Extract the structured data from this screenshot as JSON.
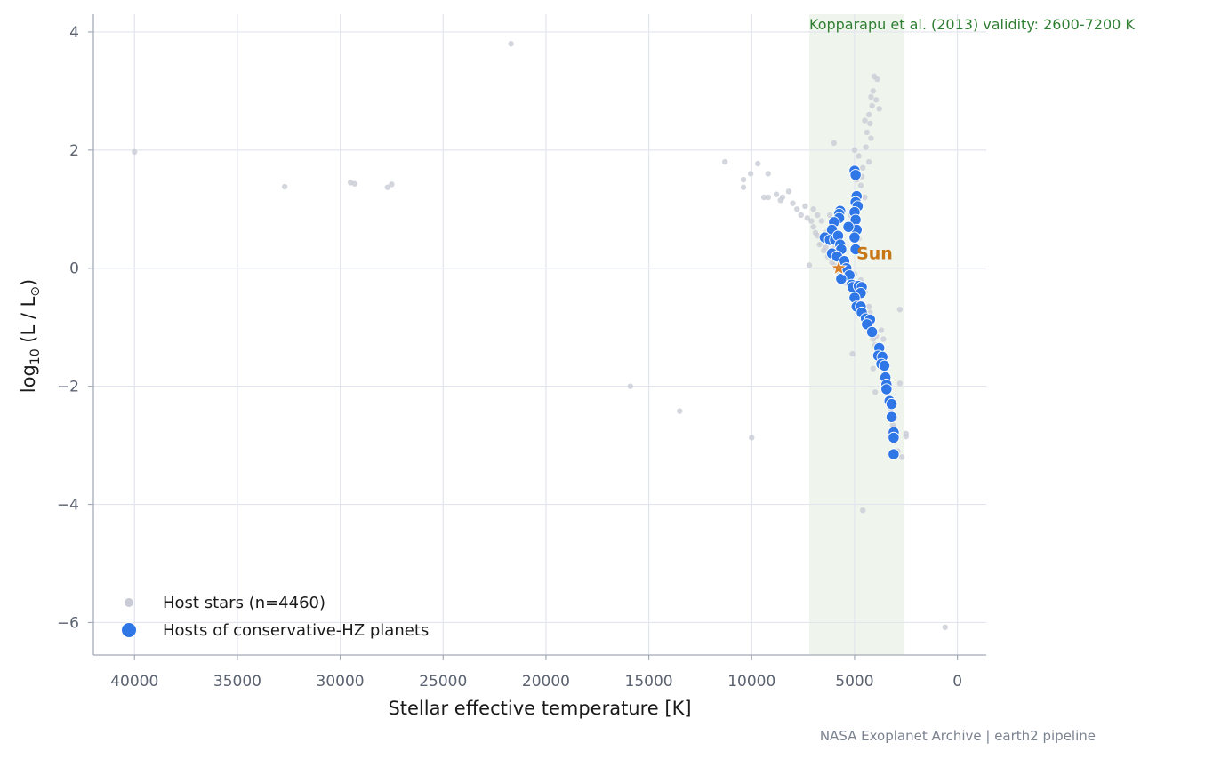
{
  "chart_data": {
    "type": "scatter",
    "title": "",
    "xlabel": "Stellar effective temperature  [K]",
    "ylabel_main": "log",
    "ylabel_sub": "10",
    "ylabel_rest": " (L / L",
    "ylabel_sun_sub": "⊙",
    "ylabel_close": ")",
    "x_inverted": true,
    "xlim": [
      42000,
      -1400
    ],
    "ylim": [
      -6.55,
      4.3
    ],
    "xticks": [
      40000,
      35000,
      30000,
      25000,
      20000,
      15000,
      10000,
      5000,
      0
    ],
    "xtick_labels": [
      "40000",
      "35000",
      "30000",
      "25000",
      "20000",
      "15000",
      "10000",
      "5000",
      "0"
    ],
    "yticks": [
      4,
      2,
      0,
      -2,
      -4,
      -6
    ],
    "ytick_labels": [
      "4",
      "2",
      "0",
      "−2",
      "−4",
      "−6"
    ],
    "grid": true,
    "legend_position": "lower-left",
    "band": {
      "x_from": 7200,
      "x_to": 2600,
      "label": "Kopparapu et al. (2013) validity: 2600-7200 K",
      "color": "#e4eee0"
    },
    "sun": {
      "label": "Sun",
      "teff": 5772,
      "log_l": 0.0,
      "color": "#d9812a"
    },
    "credit": "NASA Exoplanet Archive | earth2 pipeline",
    "series": [
      {
        "name": "Host stars (n=4460)",
        "color": "#c9ccd6",
        "points": [
          [
            40000,
            1.97
          ],
          [
            32700,
            1.38
          ],
          [
            29500,
            1.45
          ],
          [
            29300,
            1.43
          ],
          [
            27700,
            1.37
          ],
          [
            27500,
            1.42
          ],
          [
            21700,
            3.8
          ],
          [
            15900,
            -2.0
          ],
          [
            13500,
            -2.42
          ],
          [
            11300,
            1.8
          ],
          [
            10400,
            1.5
          ],
          [
            10400,
            1.37
          ],
          [
            10000,
            -2.87
          ],
          [
            10050,
            1.6
          ],
          [
            9700,
            1.77
          ],
          [
            9400,
            1.2
          ],
          [
            9200,
            1.6
          ],
          [
            9200,
            1.2
          ],
          [
            8800,
            1.25
          ],
          [
            8600,
            1.15
          ],
          [
            8500,
            1.2
          ],
          [
            8200,
            1.3
          ],
          [
            8000,
            1.1
          ],
          [
            7800,
            1.0
          ],
          [
            7600,
            0.9
          ],
          [
            7400,
            1.05
          ],
          [
            7300,
            0.85
          ],
          [
            7100,
            0.8
          ],
          [
            7000,
            0.7
          ],
          [
            6900,
            0.6
          ],
          [
            6800,
            0.55
          ],
          [
            6700,
            0.4
          ],
          [
            6600,
            0.5
          ],
          [
            6500,
            0.3
          ],
          [
            6400,
            0.35
          ],
          [
            6300,
            0.2
          ],
          [
            6200,
            0.25
          ],
          [
            6100,
            0.1
          ],
          [
            6000,
            0.05
          ],
          [
            5900,
            0.0
          ],
          [
            5800,
            -0.05
          ],
          [
            5700,
            -0.1
          ],
          [
            5600,
            -0.15
          ],
          [
            5500,
            -0.2
          ],
          [
            5400,
            -0.25
          ],
          [
            5300,
            -0.3
          ],
          [
            5200,
            -0.35
          ],
          [
            5100,
            -0.4
          ],
          [
            5000,
            -0.45
          ],
          [
            4900,
            -0.5
          ],
          [
            4800,
            -0.6
          ],
          [
            4700,
            -0.7
          ],
          [
            4600,
            -0.8
          ],
          [
            4500,
            -0.85
          ],
          [
            4400,
            -0.95
          ],
          [
            4300,
            -1.0
          ],
          [
            4200,
            -1.1
          ],
          [
            4100,
            -1.2
          ],
          [
            4000,
            -1.3
          ],
          [
            3900,
            -1.4
          ],
          [
            3800,
            -1.5
          ],
          [
            3700,
            -1.6
          ],
          [
            3600,
            -1.8
          ],
          [
            3500,
            -1.9
          ],
          [
            3400,
            -2.1
          ],
          [
            3300,
            -2.3
          ],
          [
            3200,
            -2.5
          ],
          [
            3100,
            -2.7
          ],
          [
            3000,
            -2.9
          ],
          [
            2900,
            -3.1
          ],
          [
            2700,
            -3.2
          ],
          [
            2500,
            -2.8
          ],
          [
            2500,
            -2.85
          ],
          [
            2800,
            -0.7
          ],
          [
            2800,
            -1.95
          ],
          [
            4600,
            -4.1
          ],
          [
            600,
            -6.08
          ],
          [
            5100,
            -1.45
          ],
          [
            4100,
            -1.7
          ],
          [
            4000,
            -2.1
          ],
          [
            5000,
            2.0
          ],
          [
            4800,
            1.9
          ],
          [
            4500,
            2.5
          ],
          [
            4400,
            2.3
          ],
          [
            4300,
            2.6
          ],
          [
            4200,
            2.9
          ],
          [
            4100,
            3.0
          ],
          [
            4050,
            3.25
          ],
          [
            3900,
            3.2
          ],
          [
            3800,
            2.7
          ],
          [
            4200,
            2.2
          ],
          [
            4300,
            1.8
          ],
          [
            4600,
            1.7
          ],
          [
            4700,
            1.4
          ],
          [
            4500,
            1.2
          ],
          [
            6000,
            2.12
          ],
          [
            6200,
            0.9
          ],
          [
            6100,
            0.75
          ],
          [
            6400,
            0.6
          ],
          [
            5800,
            0.45
          ],
          [
            5300,
            0.65
          ],
          [
            5200,
            0.9
          ],
          [
            5000,
            0.7
          ],
          [
            4800,
            0.5
          ],
          [
            7200,
            0.05
          ],
          [
            5100,
            1.1
          ],
          [
            4900,
            1.5
          ],
          [
            5500,
            0.3
          ],
          [
            5400,
            0.1
          ],
          [
            5000,
            -0.1
          ],
          [
            4700,
            -0.2
          ],
          [
            4500,
            -0.4
          ],
          [
            4300,
            -0.65
          ],
          [
            6600,
            0.8
          ],
          [
            6800,
            0.9
          ],
          [
            7000,
            1.0
          ],
          [
            5950,
            0.35
          ],
          [
            5650,
            0.2
          ],
          [
            4250,
            -0.75
          ],
          [
            4150,
            -0.9
          ],
          [
            3950,
            -1.15
          ],
          [
            3850,
            -1.3
          ],
          [
            3650,
            -1.45
          ],
          [
            3550,
            -1.7
          ],
          [
            3450,
            -2.0
          ],
          [
            3350,
            -2.2
          ],
          [
            3250,
            -2.4
          ],
          [
            3150,
            -2.65
          ],
          [
            3050,
            -2.85
          ],
          [
            3600,
            -1.2
          ],
          [
            3700,
            -1.05
          ],
          [
            4150,
            2.75
          ],
          [
            4250,
            2.45
          ],
          [
            3950,
            2.85
          ],
          [
            4450,
            2.05
          ],
          [
            4650,
            1.55
          ]
        ]
      },
      {
        "name": "Hosts of conservative-HZ planets",
        "color": "#2f77e6",
        "points": [
          [
            5000,
            1.65
          ],
          [
            4950,
            1.58
          ],
          [
            4900,
            1.22
          ],
          [
            4950,
            1.12
          ],
          [
            4850,
            1.05
          ],
          [
            5000,
            0.95
          ],
          [
            4950,
            0.82
          ],
          [
            4900,
            0.65
          ],
          [
            5000,
            0.52
          ],
          [
            4950,
            0.32
          ],
          [
            5700,
            0.97
          ],
          [
            5750,
            0.92
          ],
          [
            5750,
            0.85
          ],
          [
            5300,
            0.7
          ],
          [
            6000,
            0.78
          ],
          [
            6100,
            0.65
          ],
          [
            6450,
            0.52
          ],
          [
            6200,
            0.48
          ],
          [
            5950,
            0.48
          ],
          [
            5800,
            0.55
          ],
          [
            5700,
            0.4
          ],
          [
            5650,
            0.32
          ],
          [
            6100,
            0.25
          ],
          [
            5850,
            0.2
          ],
          [
            5500,
            0.12
          ],
          [
            5400,
            0.0
          ],
          [
            5250,
            -0.12
          ],
          [
            5650,
            -0.18
          ],
          [
            5150,
            -0.28
          ],
          [
            5100,
            -0.32
          ],
          [
            4800,
            -0.3
          ],
          [
            4650,
            -0.32
          ],
          [
            4700,
            -0.42
          ],
          [
            5000,
            -0.5
          ],
          [
            4900,
            -0.65
          ],
          [
            4700,
            -0.65
          ],
          [
            4650,
            -0.75
          ],
          [
            4450,
            -0.85
          ],
          [
            4250,
            -0.87
          ],
          [
            4400,
            -0.95
          ],
          [
            4150,
            -1.08
          ],
          [
            3800,
            -1.35
          ],
          [
            3850,
            -1.48
          ],
          [
            3650,
            -1.5
          ],
          [
            3700,
            -1.62
          ],
          [
            3550,
            -1.65
          ],
          [
            3500,
            -1.85
          ],
          [
            3450,
            -1.97
          ],
          [
            3450,
            -2.05
          ],
          [
            3300,
            -2.25
          ],
          [
            3200,
            -2.3
          ],
          [
            3200,
            -2.52
          ],
          [
            3100,
            -2.78
          ],
          [
            3100,
            -2.87
          ],
          [
            3100,
            -3.15
          ]
        ]
      }
    ]
  }
}
